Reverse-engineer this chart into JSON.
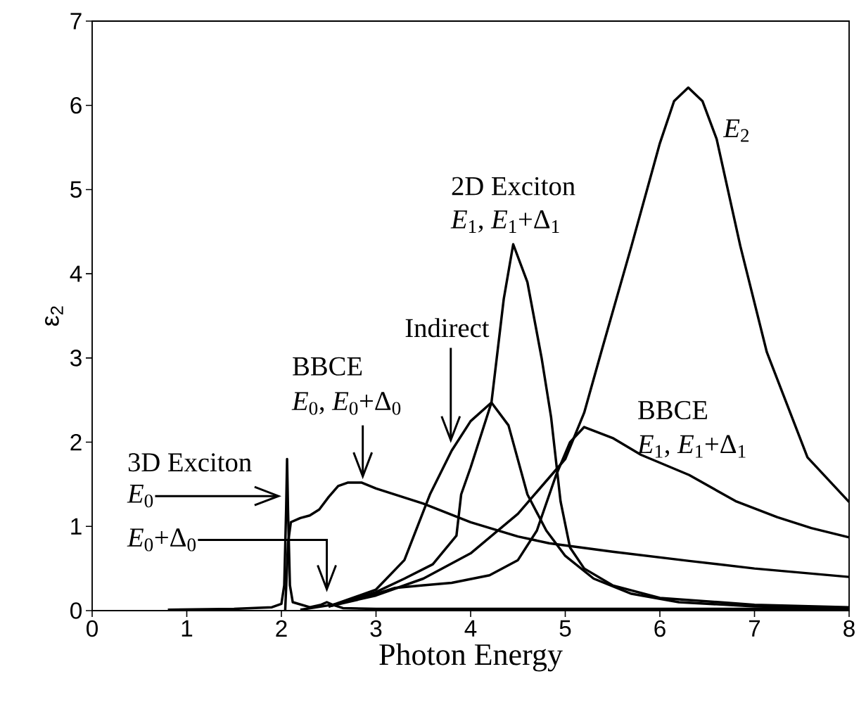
{
  "chart_data": {
    "type": "line",
    "xlabel": "Photon Energy",
    "ylabel": "ε$_{2}$",
    "xlim": [
      0,
      8
    ],
    "ylim": [
      0,
      7
    ],
    "xticks": [
      0,
      1,
      2,
      3,
      4,
      5,
      6,
      7,
      8
    ],
    "yticks": [
      0,
      1,
      2,
      3,
      4,
      5,
      6,
      7
    ],
    "series": [
      {
        "color": "#000000",
        "x": [
          2.5,
          3,
          3.5,
          4,
          4.5,
          5,
          5.2,
          5.38,
          5.7,
          6,
          6.15,
          6.3,
          6.45,
          6.6,
          6.85,
          7.13,
          7.56,
          8
        ],
        "values": [
          0.05,
          0.18,
          0.38,
          0.68,
          1.15,
          1.8,
          2.35,
          3.07,
          4.33,
          5.55,
          6.05,
          6.21,
          6.05,
          5.6,
          4.33,
          3.07,
          1.82,
          1.29
        ]
      },
      {
        "color": "#000000",
        "x": [
          2.2,
          2.6,
          3,
          3.3,
          3.6,
          3.85,
          3.9,
          4.0,
          4.22,
          4.35,
          4.45,
          4.6,
          4.75,
          4.85,
          4.95,
          5.05,
          5.2,
          5.5,
          6,
          7,
          8
        ],
        "values": [
          0.01,
          0.08,
          0.22,
          0.38,
          0.55,
          0.89,
          1.38,
          1.7,
          2.47,
          3.7,
          4.35,
          3.9,
          3.0,
          2.3,
          1.3,
          0.75,
          0.5,
          0.3,
          0.15,
          0.07,
          0.04
        ]
      },
      {
        "color": "#000000",
        "x": [
          2.5,
          3,
          3.3,
          3.57,
          3.8,
          4.0,
          4.22,
          4.4,
          4.6,
          4.8,
          5.0,
          5.3,
          5.7,
          6.2,
          7,
          8
        ],
        "values": [
          0.05,
          0.25,
          0.6,
          1.38,
          1.9,
          2.25,
          2.47,
          2.2,
          1.38,
          0.95,
          0.65,
          0.38,
          0.2,
          0.1,
          0.05,
          0.03
        ]
      },
      {
        "color": "#000000",
        "x": [
          2.5,
          3,
          3.2,
          3.5,
          3.8,
          4.2,
          4.5,
          4.7,
          4.9,
          5.05,
          5.2,
          5.5,
          5.8,
          6.31,
          6.8,
          7.24,
          7.6,
          8
        ],
        "values": [
          0.05,
          0.2,
          0.27,
          0.3,
          0.33,
          0.42,
          0.6,
          0.95,
          1.6,
          2.0,
          2.18,
          2.05,
          1.85,
          1.61,
          1.3,
          1.11,
          0.98,
          0.87
        ]
      },
      {
        "color": "#000000",
        "x": [
          2.04,
          2.07,
          2.1,
          2.2,
          2.3,
          2.4,
          2.5,
          2.6,
          2.7,
          2.85,
          3,
          3.5,
          4,
          4.5,
          4.83,
          5.5,
          6.31,
          7,
          8
        ],
        "values": [
          0,
          0.8,
          1.05,
          1.1,
          1.13,
          1.2,
          1.35,
          1.48,
          1.52,
          1.52,
          1.45,
          1.27,
          1.05,
          0.88,
          0.8,
          0.7,
          0.59,
          0.5,
          0.4
        ]
      },
      {
        "color": "#000000",
        "x": [
          0.8,
          1.5,
          1.9,
          2.0,
          2.03,
          2.05,
          2.06,
          2.07,
          2.09,
          2.12,
          2.3,
          2.42,
          2.48,
          2.54,
          2.65,
          3.0,
          4,
          6,
          8
        ],
        "values": [
          0.01,
          0.02,
          0.04,
          0.08,
          0.3,
          1.2,
          1.8,
          1.2,
          0.3,
          0.1,
          0.04,
          0.07,
          0.1,
          0.07,
          0.03,
          0.02,
          0.02,
          0.02,
          0.02
        ]
      }
    ],
    "annotations": [
      "3D Exciton",
      "*E*$_{0}$",
      "*E*$_{0}$+Δ$_{0}$",
      "BBCE",
      "*E*$_{0}$, *E*$_{0}$+Δ$_{0}$",
      "Indirect",
      "2D Exciton",
      "*E*$_{1}$, *E*$_{1}$+Δ$_{1}$",
      "BBCE",
      "*E*$_{1}$, *E*$_{1}$+Δ$_{1}$",
      "*E*$_{2}$"
    ]
  }
}
